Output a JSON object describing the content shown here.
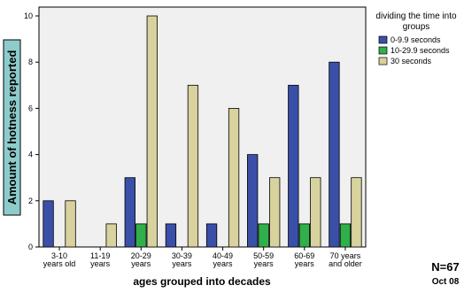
{
  "chart_data": {
    "type": "bar",
    "xlabel": "ages grouped into decades",
    "ylabel": "Amount of hotness reported",
    "ylim": [
      0,
      10
    ],
    "yticks": [
      0,
      2,
      4,
      6,
      8,
      10
    ],
    "grid": false,
    "legend_position": "right",
    "legend_title": [
      "dividing the time into",
      "groups"
    ],
    "categories": [
      [
        "3-10",
        "years old"
      ],
      [
        "11-19",
        "years"
      ],
      [
        "20-29",
        "years"
      ],
      [
        "30-39",
        "years"
      ],
      [
        "40-49",
        "years"
      ],
      [
        "50-59",
        "years"
      ],
      [
        "60-69",
        "years"
      ],
      [
        "70 years",
        "and older"
      ]
    ],
    "series": [
      {
        "name": "0-9.9 seconds",
        "color": "#3a4fa8",
        "values": [
          2,
          0,
          3,
          1,
          1,
          4,
          7,
          8
        ]
      },
      {
        "name": "10-29.9 seconds",
        "color": "#2fb04a",
        "values": [
          0,
          0,
          1,
          0,
          0,
          1,
          1,
          1
        ]
      },
      {
        "name": "30 seconds",
        "color": "#d8d29e",
        "values": [
          2,
          1,
          10,
          7,
          6,
          3,
          3,
          3
        ]
      }
    ],
    "annotations": {
      "n": "N=67",
      "date": "Oct 08"
    }
  },
  "colors": {
    "plot_background": "#f0f0f0",
    "ylabel_box": "#8ecccc"
  }
}
